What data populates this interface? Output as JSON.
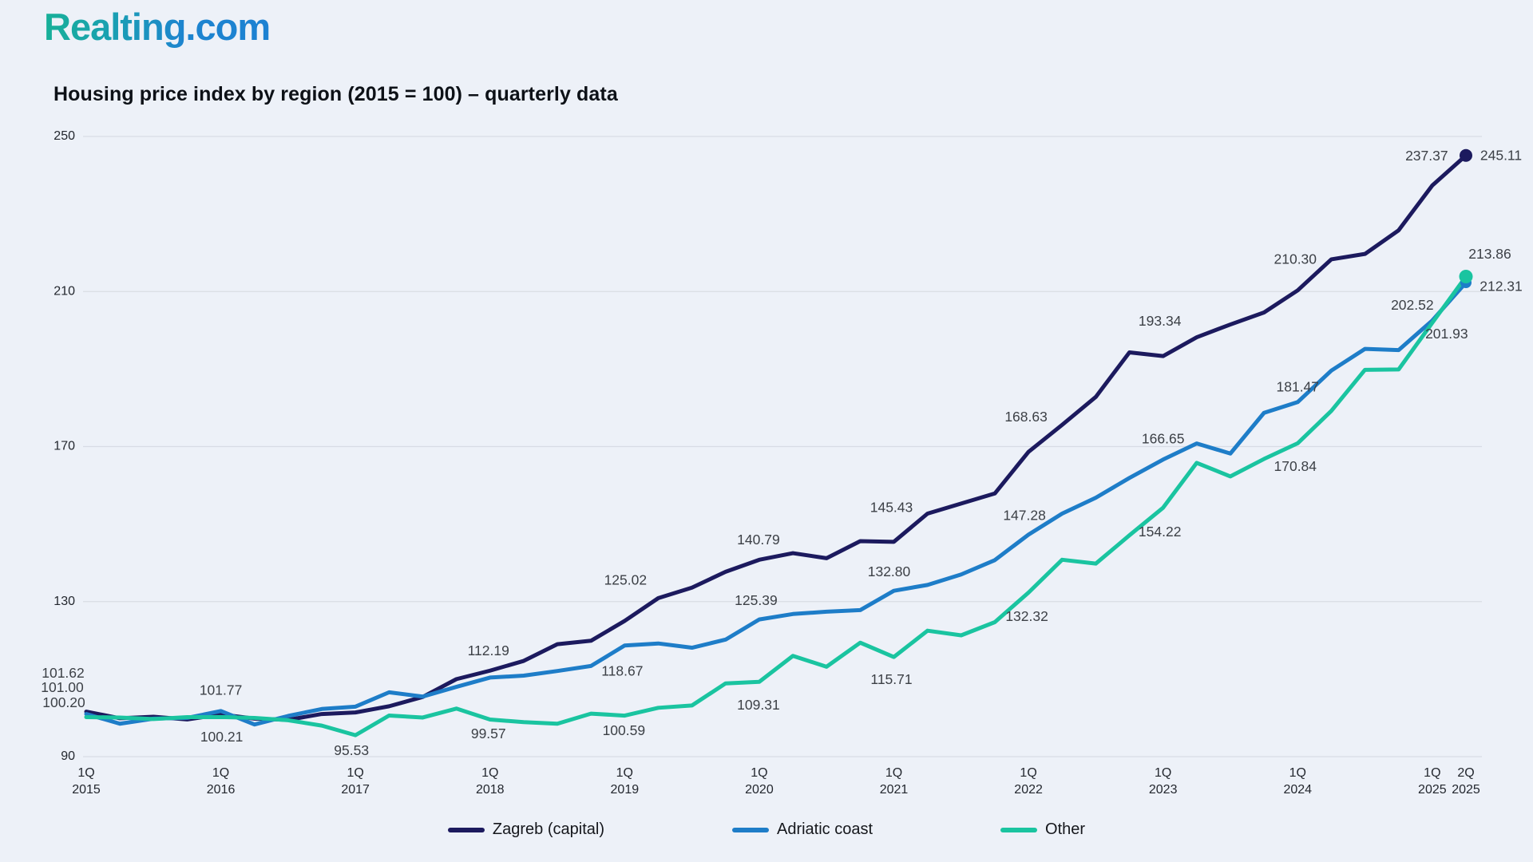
{
  "brand": {
    "logo_text": "Realting.com"
  },
  "chart_data": {
    "type": "line",
    "title": "Housing price index by region (2015 = 100) – quarterly data",
    "xlabel": "",
    "ylabel": "",
    "ylim": [
      90,
      250
    ],
    "y_ticks": [
      250,
      210,
      170,
      130,
      90
    ],
    "grid": "horizontal",
    "legend_position": "bottom",
    "background_color": "#edf1f8",
    "gridline_color": "#d8dce4",
    "tick_text_color": "#23272e",
    "data_label_color": "#3c4046",
    "x": [
      "1Q 2015",
      "2Q 2015",
      "3Q 2015",
      "4Q 2015",
      "1Q 2016",
      "2Q 2016",
      "3Q 2016",
      "4Q 2016",
      "1Q 2017",
      "2Q 2017",
      "3Q 2017",
      "4Q 2017",
      "1Q 2018",
      "2Q 2018",
      "3Q 2018",
      "4Q 2018",
      "1Q 2019",
      "2Q 2019",
      "3Q 2019",
      "4Q 2019",
      "1Q 2020",
      "2Q 2020",
      "3Q 2020",
      "4Q 2020",
      "1Q 2021",
      "2Q 2021",
      "3Q 2021",
      "4Q 2021",
      "1Q 2022",
      "2Q 2022",
      "3Q 2022",
      "4Q 2022",
      "1Q 2023",
      "2Q 2023",
      "3Q 2023",
      "4Q 2023",
      "1Q 2024",
      "2Q 2024",
      "3Q 2024",
      "4Q 2024",
      "1Q 2025",
      "2Q 2025"
    ],
    "x_ticks": [
      {
        "i": 0,
        "l1": "1Q",
        "l2": "2015"
      },
      {
        "i": 4,
        "l1": "1Q",
        "l2": "2016"
      },
      {
        "i": 8,
        "l1": "1Q",
        "l2": "2017"
      },
      {
        "i": 12,
        "l1": "1Q",
        "l2": "2018"
      },
      {
        "i": 16,
        "l1": "1Q",
        "l2": "2019"
      },
      {
        "i": 20,
        "l1": "1Q",
        "l2": "2020"
      },
      {
        "i": 24,
        "l1": "1Q",
        "l2": "2021"
      },
      {
        "i": 28,
        "l1": "1Q",
        "l2": "2022"
      },
      {
        "i": 32,
        "l1": "1Q",
        "l2": "2023"
      },
      {
        "i": 36,
        "l1": "1Q",
        "l2": "2024"
      },
      {
        "i": 40,
        "l1": "1Q",
        "l2": "2025"
      },
      {
        "i": 41,
        "l1": "2Q",
        "l2": "2025"
      }
    ],
    "series": [
      {
        "name": "Zagreb (capital)",
        "color": "#1c1a5e",
        "end_dot": true,
        "dot_radius": 8,
        "values": [
          101.62,
          99.9,
          100.3,
          99.6,
          100.9,
          99.8,
          99.5,
          101.0,
          101.4,
          103.0,
          105.4,
          110.0,
          112.19,
          114.7,
          119.0,
          119.9,
          125.02,
          130.9,
          133.6,
          137.7,
          140.79,
          142.5,
          141.2,
          145.6,
          145.43,
          152.7,
          155.3,
          157.9,
          168.63,
          175.6,
          182.8,
          194.3,
          193.34,
          198.2,
          201.5,
          204.6,
          210.3,
          218.3,
          219.7,
          225.8,
          237.37,
          245.11
        ],
        "labels": [
          {
            "i": 0,
            "text": "101.62",
            "dx": -29,
            "dy": -47
          },
          {
            "i": 12,
            "text": "112.19",
            "dx": -2,
            "dy": -24
          },
          {
            "i": 16,
            "text": "125.02",
            "dx": 1,
            "dy": -50
          },
          {
            "i": 20,
            "text": "140.79",
            "dx": -1,
            "dy": -24
          },
          {
            "i": 24,
            "text": "145.43",
            "dx": -3,
            "dy": -42
          },
          {
            "i": 28,
            "text": "168.63",
            "dx": -3,
            "dy": -43
          },
          {
            "i": 32,
            "text": "193.34",
            "dx": -4,
            "dy": -43
          },
          {
            "i": 36,
            "text": "210.30",
            "dx": -3,
            "dy": -38
          },
          {
            "i": 40,
            "text": "237.37",
            "dx": -7,
            "dy": -36
          },
          {
            "i": 41,
            "text": "245.11",
            "dx": 44,
            "dy": 1
          }
        ]
      },
      {
        "name": "Adriatic coast",
        "color": "#1e7dc8",
        "end_dot": true,
        "dot_radius": 7,
        "values": [
          101.0,
          98.5,
          99.8,
          100.0,
          101.77,
          98.3,
          100.5,
          102.3,
          102.9,
          106.6,
          105.5,
          108.0,
          110.4,
          110.9,
          112.1,
          113.4,
          118.67,
          119.2,
          118.1,
          120.2,
          125.39,
          126.8,
          127.4,
          127.8,
          132.8,
          134.3,
          137.0,
          140.7,
          147.28,
          152.7,
          156.8,
          161.9,
          166.65,
          170.8,
          168.2,
          178.7,
          181.47,
          189.6,
          195.2,
          194.9,
          202.52,
          212.31
        ],
        "labels": [
          {
            "i": 0,
            "text": "101.00",
            "dx": -30,
            "dy": -32
          },
          {
            "i": 4,
            "text": "101.77",
            "dx": 0,
            "dy": -25
          },
          {
            "i": 16,
            "text": "118.67",
            "dx": -3,
            "dy": 33
          },
          {
            "i": 20,
            "text": "125.39",
            "dx": -4,
            "dy": -23
          },
          {
            "i": 24,
            "text": "132.80",
            "dx": -6,
            "dy": -23
          },
          {
            "i": 28,
            "text": "147.28",
            "dx": -5,
            "dy": -23
          },
          {
            "i": 32,
            "text": "166.65",
            "dx": 0,
            "dy": -25
          },
          {
            "i": 36,
            "text": "181.47",
            "dx": 0,
            "dy": -18
          },
          {
            "i": 40,
            "text": "202.52",
            "dx": -25,
            "dy": -18
          },
          {
            "i": 41,
            "text": "212.31",
            "dx": 44,
            "dy": 6
          }
        ]
      },
      {
        "name": "Other",
        "color": "#1ac4a0",
        "end_dot": true,
        "dot_radius": 8.5,
        "values": [
          100.2,
          100.1,
          99.7,
          100.2,
          100.21,
          100.0,
          99.4,
          98.0,
          95.53,
          100.6,
          100.1,
          102.4,
          99.57,
          98.9,
          98.5,
          101.1,
          100.59,
          102.6,
          103.2,
          108.9,
          109.31,
          116.0,
          113.2,
          119.4,
          115.71,
          122.5,
          121.3,
          124.7,
          132.32,
          140.8,
          139.8,
          147.1,
          154.22,
          165.8,
          162.3,
          166.8,
          170.84,
          179.2,
          189.8,
          189.9,
          201.93,
          213.86
        ],
        "labels": [
          {
            "i": 0,
            "text": "100.20",
            "dx": -28,
            "dy": -17
          },
          {
            "i": 4,
            "text": "100.21",
            "dx": 1,
            "dy": 26
          },
          {
            "i": 8,
            "text": "95.53",
            "dx": -5,
            "dy": 20
          },
          {
            "i": 12,
            "text": "99.57",
            "dx": -2,
            "dy": 19
          },
          {
            "i": 16,
            "text": "100.59",
            "dx": -1,
            "dy": 20
          },
          {
            "i": 20,
            "text": "109.31",
            "dx": -1,
            "dy": 30
          },
          {
            "i": 24,
            "text": "115.71",
            "dx": -3,
            "dy": 29
          },
          {
            "i": 28,
            "text": "132.32",
            "dx": -2,
            "dy": 31
          },
          {
            "i": 32,
            "text": "154.22",
            "dx": -4,
            "dy": 31
          },
          {
            "i": 36,
            "text": "170.84",
            "dx": -3,
            "dy": 30
          },
          {
            "i": 40,
            "text": "201.93",
            "dx": 18,
            "dy": 15
          },
          {
            "i": 41,
            "text": "213.86",
            "dx": 30,
            "dy": -27
          }
        ]
      }
    ]
  }
}
